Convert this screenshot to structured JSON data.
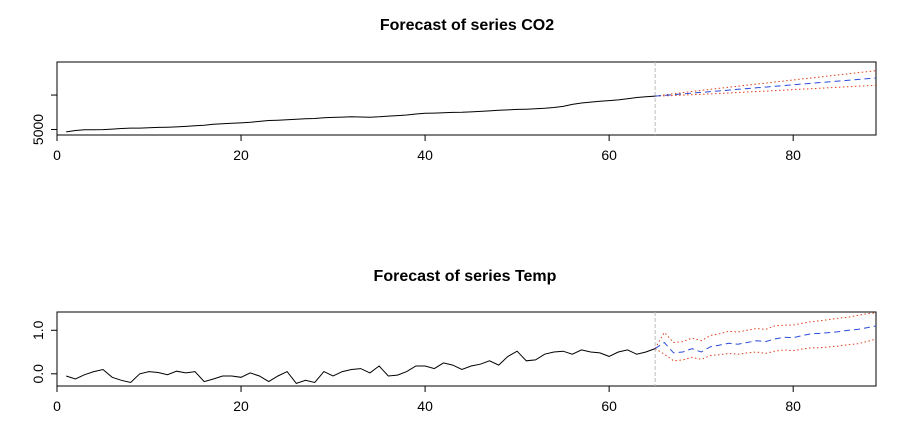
{
  "chart_data": [
    {
      "type": "line",
      "title": "Forecast of series CO2",
      "xlabel": "",
      "ylabel": "",
      "xlim": [
        0,
        89
      ],
      "ylim": [
        4200,
        14800
      ],
      "x_ticks": [
        0,
        20,
        40,
        60,
        80
      ],
      "y_ticks": [
        5000,
        10000
      ],
      "y_tick_labels": [
        "5000",
        ""
      ],
      "forecast_start_x": 65,
      "colors": {
        "observed": "#000000",
        "forecast": "#2b4bd8",
        "interval": "#e0401a",
        "divider": "#bdbdbd"
      },
      "observed": {
        "x": [
          1,
          2,
          3,
          4,
          5,
          6,
          7,
          8,
          9,
          10,
          11,
          12,
          13,
          14,
          15,
          16,
          17,
          18,
          19,
          20,
          21,
          22,
          23,
          24,
          25,
          26,
          27,
          28,
          29,
          30,
          31,
          32,
          33,
          34,
          35,
          36,
          37,
          38,
          39,
          40,
          41,
          42,
          43,
          44,
          45,
          46,
          47,
          48,
          49,
          50,
          51,
          52,
          53,
          54,
          55,
          56,
          57,
          58,
          59,
          60,
          61,
          62,
          63,
          64,
          65
        ],
        "y": [
          4650,
          4850,
          4950,
          4950,
          4980,
          5050,
          5150,
          5200,
          5200,
          5250,
          5300,
          5330,
          5380,
          5450,
          5550,
          5620,
          5750,
          5820,
          5900,
          5950,
          6050,
          6180,
          6300,
          6350,
          6400,
          6480,
          6550,
          6600,
          6700,
          6750,
          6800,
          6850,
          6820,
          6780,
          6850,
          6950,
          7020,
          7100,
          7250,
          7350,
          7380,
          7420,
          7480,
          7500,
          7550,
          7620,
          7700,
          7780,
          7850,
          7920,
          7950,
          8000,
          8080,
          8200,
          8350,
          8650,
          8850,
          8980,
          9100,
          9200,
          9300,
          9450,
          9650,
          9750,
          9850
        ]
      },
      "forecast": {
        "x": [
          65,
          66,
          67,
          68,
          69,
          70,
          71,
          72,
          73,
          74,
          75,
          76,
          77,
          78,
          79,
          80,
          81,
          82,
          83,
          84,
          85,
          86,
          87,
          88,
          89
        ],
        "mean": [
          9850,
          9950,
          10060,
          10170,
          10280,
          10390,
          10500,
          10610,
          10720,
          10830,
          10940,
          11050,
          11160,
          11270,
          11380,
          11490,
          11600,
          11710,
          11820,
          11930,
          12040,
          12150,
          12260,
          12370,
          12480
        ],
        "lower": [
          9850,
          9880,
          9930,
          9990,
          10050,
          10110,
          10170,
          10240,
          10300,
          10370,
          10440,
          10510,
          10580,
          10650,
          10720,
          10790,
          10860,
          10930,
          11000,
          11070,
          11140,
          11210,
          11280,
          11350,
          11420
        ],
        "upper": [
          9850,
          10020,
          10190,
          10350,
          10510,
          10670,
          10830,
          10980,
          11140,
          11290,
          11440,
          11590,
          11740,
          11890,
          12040,
          12190,
          12340,
          12490,
          12640,
          12790,
          12940,
          13090,
          13240,
          13390,
          13540
        ]
      }
    },
    {
      "type": "line",
      "title": "Forecast of series Temp",
      "xlabel": "",
      "ylabel": "",
      "xlim": [
        0,
        89
      ],
      "ylim": [
        -0.28,
        1.42
      ],
      "x_ticks": [
        0,
        20,
        40,
        60,
        80
      ],
      "y_ticks": [
        0.0,
        1.0
      ],
      "y_tick_labels": [
        "0.0",
        "1.0"
      ],
      "forecast_start_x": 65,
      "colors": {
        "observed": "#000000",
        "forecast": "#2b4bd8",
        "interval": "#e0401a",
        "divider": "#bdbdbd"
      },
      "observed": {
        "x": [
          1,
          2,
          3,
          4,
          5,
          6,
          7,
          8,
          9,
          10,
          11,
          12,
          13,
          14,
          15,
          16,
          17,
          18,
          19,
          20,
          21,
          22,
          23,
          24,
          25,
          26,
          27,
          28,
          29,
          30,
          31,
          32,
          33,
          34,
          35,
          36,
          37,
          38,
          39,
          40,
          41,
          42,
          43,
          44,
          45,
          46,
          47,
          48,
          49,
          50,
          51,
          52,
          53,
          54,
          55,
          56,
          57,
          58,
          59,
          60,
          61,
          62,
          63,
          64,
          65
        ],
        "y": [
          -0.05,
          -0.12,
          -0.02,
          0.05,
          0.1,
          -0.08,
          -0.15,
          -0.2,
          0.0,
          0.05,
          0.03,
          -0.02,
          0.06,
          0.02,
          0.05,
          -0.18,
          -0.12,
          -0.05,
          -0.05,
          -0.08,
          0.02,
          -0.05,
          -0.18,
          -0.05,
          0.05,
          -0.22,
          -0.15,
          -0.2,
          0.05,
          -0.05,
          0.05,
          0.1,
          0.12,
          0.02,
          0.18,
          -0.05,
          -0.03,
          0.05,
          0.18,
          0.18,
          0.12,
          0.25,
          0.2,
          0.1,
          0.18,
          0.22,
          0.3,
          0.2,
          0.4,
          0.52,
          0.3,
          0.32,
          0.45,
          0.5,
          0.52,
          0.45,
          0.55,
          0.5,
          0.48,
          0.4,
          0.5,
          0.55,
          0.45,
          0.5,
          0.58
        ]
      },
      "forecast": {
        "x": [
          65,
          66,
          67,
          68,
          69,
          70,
          71,
          72,
          73,
          74,
          75,
          76,
          77,
          78,
          79,
          80,
          81,
          82,
          83,
          84,
          85,
          86,
          87,
          88,
          89
        ],
        "mean": [
          0.58,
          0.72,
          0.48,
          0.5,
          0.58,
          0.5,
          0.62,
          0.66,
          0.7,
          0.68,
          0.72,
          0.76,
          0.74,
          0.8,
          0.84,
          0.83,
          0.88,
          0.92,
          0.93,
          0.95,
          0.97,
          1.0,
          1.02,
          1.06,
          1.1
        ],
        "lower": [
          0.58,
          0.45,
          0.3,
          0.32,
          0.38,
          0.33,
          0.42,
          0.44,
          0.47,
          0.45,
          0.48,
          0.5,
          0.47,
          0.52,
          0.55,
          0.53,
          0.57,
          0.6,
          0.6,
          0.62,
          0.64,
          0.67,
          0.69,
          0.74,
          0.8
        ],
        "upper": [
          0.58,
          0.95,
          0.72,
          0.74,
          0.82,
          0.76,
          0.88,
          0.92,
          0.98,
          0.96,
          1.0,
          1.04,
          1.02,
          1.1,
          1.12,
          1.12,
          1.16,
          1.2,
          1.22,
          1.25,
          1.28,
          1.3,
          1.34,
          1.38,
          1.4
        ]
      }
    }
  ]
}
